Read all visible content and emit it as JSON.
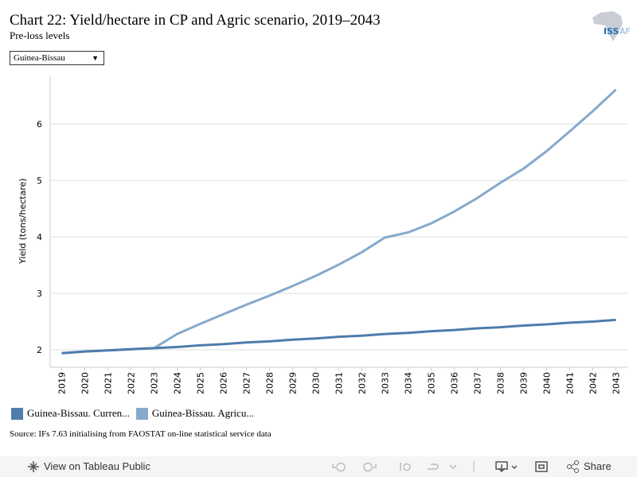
{
  "header": {
    "title": "Chart 22: Yield/hectare in CP and Agric scenario, 2019–2043",
    "subtitle": "Pre-loss levels"
  },
  "logo": {
    "main": "ISS",
    "suffix": "AF"
  },
  "dropdown": {
    "selected": "Guinea-Bissau"
  },
  "chart_data": {
    "type": "line",
    "y_label": "Yield (tons/hectare)",
    "categories": [
      "2019",
      "2020",
      "2021",
      "2022",
      "2023",
      "2024",
      "2025",
      "2026",
      "2027",
      "2028",
      "2029",
      "2030",
      "2031",
      "2032",
      "2033",
      "2034",
      "2035",
      "2036",
      "2037",
      "2038",
      "2039",
      "2040",
      "2041",
      "2042",
      "2043"
    ],
    "series": [
      {
        "name": "Guinea-Bissau. Curren...",
        "color": "#4e7cac",
        "values": [
          1.94,
          1.97,
          1.99,
          2.01,
          2.03,
          2.05,
          2.08,
          2.1,
          2.13,
          2.15,
          2.18,
          2.2,
          2.23,
          2.25,
          2.28,
          2.3,
          2.33,
          2.35,
          2.38,
          2.4,
          2.43,
          2.45,
          2.48,
          2.5,
          2.53
        ]
      },
      {
        "name": "Guinea-Bissau. Agricu...",
        "color": "#86a9cc",
        "values": [
          1.94,
          1.97,
          1.99,
          2.01,
          2.03,
          2.28,
          2.46,
          2.63,
          2.8,
          2.96,
          3.13,
          3.31,
          3.51,
          3.73,
          3.99,
          4.08,
          4.24,
          4.45,
          4.69,
          4.96,
          5.21,
          5.52,
          5.87,
          6.23,
          6.61
        ]
      }
    ],
    "ylim": [
      1.69,
      6.86
    ],
    "yticks": [
      2,
      3,
      4,
      5,
      6
    ],
    "grid": true
  },
  "source": "Source: IFs 7.63 initialising from FAOSTAT on-line statistical service data",
  "toolbar": {
    "view": "View on Tableau Public",
    "share": "Share"
  }
}
